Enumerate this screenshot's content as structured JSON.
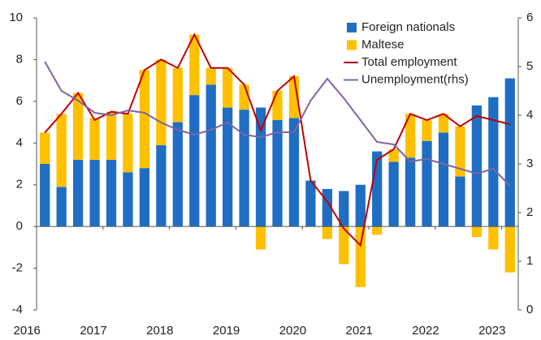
{
  "chart_data": {
    "type": "bar",
    "categories": [
      "2016",
      null,
      null,
      null,
      "2017",
      null,
      null,
      null,
      "2018",
      null,
      null,
      null,
      "2019",
      null,
      null,
      null,
      "2020",
      null,
      null,
      null,
      "2021",
      null,
      null,
      null,
      "2022",
      null,
      null,
      null,
      "2023"
    ],
    "series": [
      {
        "name": "Foreign nationals",
        "type": "bar",
        "color": "#1f6ec4",
        "values": [
          3.0,
          1.9,
          3.2,
          3.2,
          3.2,
          2.6,
          2.8,
          3.9,
          5.0,
          6.3,
          6.8,
          5.7,
          5.6,
          5.7,
          5.1,
          5.2,
          2.2,
          1.8,
          1.7,
          2.0,
          3.6,
          3.1,
          3.3,
          4.1,
          4.5,
          2.4,
          5.8,
          6.2,
          7.1
        ]
      },
      {
        "name": "Maltese",
        "type": "bar",
        "color": "#ffc000",
        "values": [
          1.5,
          3.5,
          3.2,
          2.0,
          2.3,
          2.8,
          4.7,
          4.1,
          2.6,
          2.9,
          0.8,
          1.9,
          1.2,
          -1.1,
          1.4,
          2.0,
          0,
          -0.6,
          -1.8,
          -2.9,
          -0.4,
          0.6,
          2.1,
          1.0,
          0.9,
          2.4,
          -0.5,
          -1.1,
          -2.2
        ]
      },
      {
        "name": "Total employment",
        "type": "line",
        "color": "#c00000",
        "values": [
          4.5,
          5.4,
          6.4,
          5.1,
          5.5,
          5.4,
          7.5,
          8.0,
          7.6,
          9.2,
          7.6,
          7.6,
          6.8,
          4.6,
          6.5,
          7.2,
          2.2,
          1.2,
          -0.1,
          -0.9,
          3.2,
          3.7,
          5.4,
          5.1,
          5.4,
          4.8,
          5.3,
          5.1,
          4.9
        ]
      },
      {
        "name": "Unemployment(rhs)",
        "type": "line",
        "axis": "y2",
        "color": "#8064a2",
        "values": [
          5.1,
          4.5,
          4.3,
          4.05,
          4.0,
          4.1,
          4.05,
          3.85,
          3.7,
          3.6,
          3.7,
          3.85,
          3.6,
          3.55,
          3.65,
          3.65,
          4.3,
          4.75,
          4.35,
          3.9,
          3.45,
          3.4,
          3.05,
          3.1,
          3.0,
          2.9,
          2.8,
          2.9,
          2.55
        ]
      }
    ],
    "ylim": [
      -4,
      10
    ],
    "yticks": [
      -4,
      -2,
      0,
      2,
      4,
      6,
      8,
      10
    ],
    "y2lim": [
      0,
      6
    ],
    "y2ticks": [
      0,
      1,
      2,
      3,
      4,
      5,
      6
    ],
    "legend": "upper right"
  }
}
